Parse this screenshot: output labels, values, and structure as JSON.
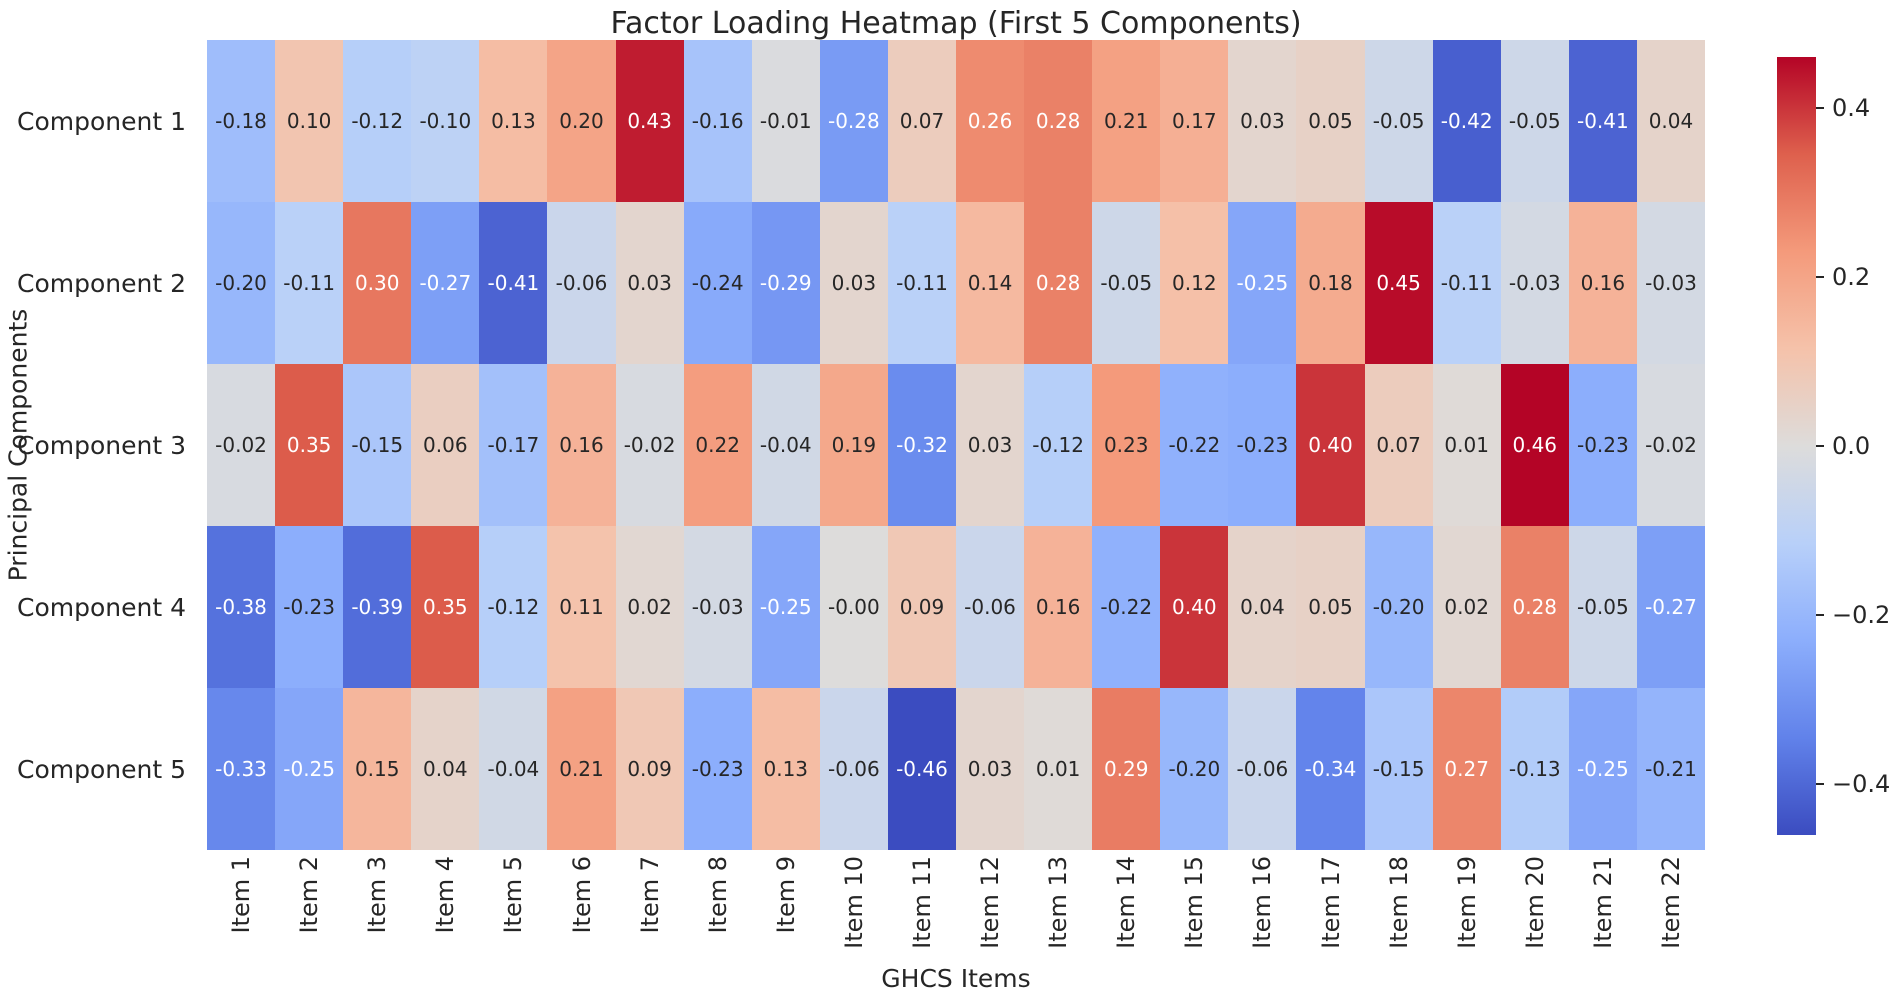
{
  "chart_data": {
    "type": "heatmap",
    "title": "Factor Loading Heatmap (First 5 Components)",
    "xlabel": "GHCS Items",
    "ylabel": "Principal Components",
    "rows": [
      "Component 1",
      "Component 2",
      "Component 3",
      "Component 4",
      "Component 5"
    ],
    "columns": [
      "Item 1",
      "Item 2",
      "Item 3",
      "Item 4",
      "Item 5",
      "Item 6",
      "Item 7",
      "Item 8",
      "Item 9",
      "Item 10",
      "Item 11",
      "Item 12",
      "Item 13",
      "Item 14",
      "Item 15",
      "Item 16",
      "Item 17",
      "Item 18",
      "Item 19",
      "Item 20",
      "Item 21",
      "Item 22"
    ],
    "values": [
      [
        "-0.18",
        "0.10",
        "-0.12",
        "-0.10",
        "0.13",
        "0.20",
        "0.43",
        "-0.16",
        "-0.01",
        "-0.28",
        "0.07",
        "0.26",
        "0.28",
        "0.21",
        "0.17",
        "0.03",
        "0.05",
        "-0.05",
        "-0.42",
        "-0.05",
        "-0.41",
        "0.04"
      ],
      [
        "-0.20",
        "-0.11",
        "0.30",
        "-0.27",
        "-0.41",
        "-0.06",
        "0.03",
        "-0.24",
        "-0.29",
        "0.03",
        "-0.11",
        "0.14",
        "0.28",
        "-0.05",
        "0.12",
        "-0.25",
        "0.18",
        "0.45",
        "-0.11",
        "-0.03",
        "0.16",
        "-0.03"
      ],
      [
        "-0.02",
        "0.35",
        "-0.15",
        "0.06",
        "-0.17",
        "0.16",
        "-0.02",
        "0.22",
        "-0.04",
        "0.19",
        "-0.32",
        "0.03",
        "-0.12",
        "0.23",
        "-0.22",
        "-0.23",
        "0.40",
        "0.07",
        "0.01",
        "0.46",
        "-0.23",
        "-0.02"
      ],
      [
        "-0.38",
        "-0.23",
        "-0.39",
        "0.35",
        "-0.12",
        "0.11",
        "0.02",
        "-0.03",
        "-0.25",
        "-0.00",
        "0.09",
        "-0.06",
        "0.16",
        "-0.22",
        "0.40",
        "0.04",
        "0.05",
        "-0.20",
        "0.02",
        "0.28",
        "-0.05",
        "-0.27"
      ],
      [
        "-0.33",
        "-0.25",
        "0.15",
        "0.04",
        "-0.04",
        "0.21",
        "0.09",
        "-0.23",
        "0.13",
        "-0.06",
        "-0.46",
        "0.03",
        "0.01",
        "0.29",
        "-0.20",
        "-0.06",
        "-0.34",
        "-0.15",
        "0.27",
        "-0.13",
        "-0.25",
        "-0.21"
      ]
    ],
    "vmin": -0.46,
    "vmax": 0.46,
    "colormap": "coolwarm",
    "colormap_anchors": [
      "#3B4CC0",
      "#6182EA",
      "#8CAEFC",
      "#B8D0F9",
      "#DDDCDB",
      "#F5C2AA",
      "#F49A7B",
      "#DE604D",
      "#B40426"
    ],
    "colorbar": {
      "ticks": [
        {
          "value": 0.4,
          "label": "0.4"
        },
        {
          "value": 0.2,
          "label": "0.2"
        },
        {
          "value": 0.0,
          "label": "0.0"
        },
        {
          "value": -0.2,
          "label": "−0.2"
        },
        {
          "value": -0.4,
          "label": "−0.4"
        }
      ]
    },
    "colors": {
      "text": "#262626",
      "annotation_dark": "#262626",
      "annotation_light": "#FFFFFF",
      "background": "#FFFFFF"
    }
  }
}
